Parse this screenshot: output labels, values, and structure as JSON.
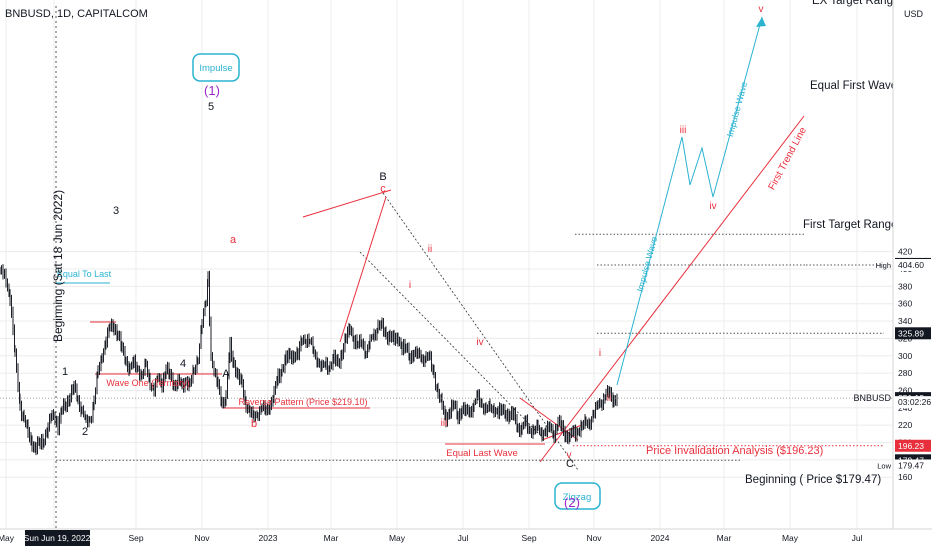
{
  "header": {
    "symbol_line": "BNBUSD, 1D, CAPITALCOM",
    "currency": "USD"
  },
  "colors": {
    "red": "#e8303d",
    "cyan": "#2bb3d0",
    "purple": "#9b27c9",
    "black": "#131722",
    "grid": "#ececec"
  },
  "chart_data": {
    "type": "candlestick",
    "title": "BNBUSD, 1D, CAPITALCOM",
    "ylim": [
      150,
      440
    ],
    "y_ticks": [
      160,
      180,
      200,
      220,
      240,
      260,
      280,
      300,
      320,
      340,
      360,
      380,
      400,
      420
    ],
    "x_ticks": [
      "May",
      "Sun Jun 19, 2022",
      "Sep",
      "Nov",
      "2023",
      "Mar",
      "May",
      "Jul",
      "Sep",
      "Nov",
      "2024",
      "Mar",
      "May",
      "Jul"
    ],
    "price_path": [
      [
        0,
        400
      ],
      [
        6,
        385
      ],
      [
        10,
        370
      ],
      [
        15,
        300
      ],
      [
        20,
        245
      ],
      [
        24,
        225
      ],
      [
        28,
        210
      ],
      [
        32,
        200
      ],
      [
        36,
        193
      ],
      [
        40,
        198
      ],
      [
        44,
        205
      ],
      [
        48,
        218
      ],
      [
        52,
        230
      ],
      [
        55,
        230
      ],
      [
        58,
        220
      ],
      [
        62,
        235
      ],
      [
        66,
        245
      ],
      [
        70,
        255
      ],
      [
        74,
        262
      ],
      [
        78,
        250
      ],
      [
        82,
        238
      ],
      [
        86,
        222
      ],
      [
        90,
        226
      ],
      [
        94,
        250
      ],
      [
        98,
        280
      ],
      [
        102,
        300
      ],
      [
        106,
        320
      ],
      [
        110,
        330
      ],
      [
        114,
        335
      ],
      [
        118,
        325
      ],
      [
        122,
        305
      ],
      [
        126,
        295
      ],
      [
        130,
        285
      ],
      [
        134,
        290
      ],
      [
        138,
        285
      ],
      [
        142,
        278
      ],
      [
        146,
        288
      ],
      [
        150,
        270
      ],
      [
        154,
        262
      ],
      [
        158,
        272
      ],
      [
        162,
        270
      ],
      [
        166,
        285
      ],
      [
        170,
        275
      ],
      [
        174,
        268
      ],
      [
        178,
        270
      ],
      [
        182,
        262
      ],
      [
        186,
        272
      ],
      [
        190,
        268
      ],
      [
        194,
        280
      ],
      [
        198,
        300
      ],
      [
        202,
        340
      ],
      [
        206,
        360
      ],
      [
        208,
        390
      ],
      [
        211,
        300
      ],
      [
        214,
        280
      ],
      [
        218,
        265
      ],
      [
        222,
        248
      ],
      [
        226,
        250
      ],
      [
        230,
        310
      ],
      [
        234,
        290
      ],
      [
        238,
        275
      ],
      [
        242,
        265
      ],
      [
        246,
        245
      ],
      [
        250,
        235
      ],
      [
        254,
        228
      ],
      [
        258,
        238
      ],
      [
        262,
        240
      ],
      [
        266,
        236
      ],
      [
        270,
        246
      ],
      [
        274,
        254
      ],
      [
        278,
        275
      ],
      [
        282,
        285
      ],
      [
        286,
        295
      ],
      [
        290,
        298
      ],
      [
        294,
        302
      ],
      [
        298,
        300
      ],
      [
        302,
        318
      ],
      [
        306,
        322
      ],
      [
        310,
        315
      ],
      [
        314,
        305
      ],
      [
        318,
        296
      ],
      [
        322,
        285
      ],
      [
        326,
        290
      ],
      [
        330,
        288
      ],
      [
        334,
        295
      ],
      [
        338,
        290
      ],
      [
        342,
        305
      ],
      [
        346,
        318
      ],
      [
        350,
        332
      ],
      [
        354,
        320
      ],
      [
        358,
        310
      ],
      [
        362,
        318
      ],
      [
        366,
        305
      ],
      [
        370,
        315
      ],
      [
        374,
        325
      ],
      [
        378,
        336
      ],
      [
        382,
        332
      ],
      [
        386,
        322
      ],
      [
        390,
        325
      ],
      [
        394,
        315
      ],
      [
        398,
        320
      ],
      [
        402,
        312
      ],
      [
        406,
        305
      ],
      [
        410,
        300
      ],
      [
        414,
        305
      ],
      [
        418,
        300
      ],
      [
        422,
        298
      ],
      [
        426,
        300
      ],
      [
        430,
        295
      ],
      [
        434,
        278
      ],
      [
        438,
        258
      ],
      [
        442,
        240
      ],
      [
        446,
        228
      ],
      [
        450,
        238
      ],
      [
        454,
        240
      ],
      [
        458,
        232
      ],
      [
        462,
        238
      ],
      [
        466,
        234
      ],
      [
        470,
        238
      ],
      [
        474,
        244
      ],
      [
        478,
        252
      ],
      [
        482,
        244
      ],
      [
        486,
        240
      ],
      [
        490,
        238
      ],
      [
        494,
        240
      ],
      [
        498,
        236
      ],
      [
        502,
        234
      ],
      [
        506,
        236
      ],
      [
        510,
        230
      ],
      [
        514,
        230
      ],
      [
        518,
        218
      ],
      [
        522,
        215
      ],
      [
        526,
        222
      ],
      [
        530,
        215
      ],
      [
        534,
        214
      ],
      [
        538,
        216
      ],
      [
        542,
        213
      ],
      [
        546,
        214
      ],
      [
        550,
        216
      ],
      [
        554,
        212
      ],
      [
        558,
        222
      ],
      [
        562,
        216
      ],
      [
        566,
        209
      ],
      [
        570,
        206
      ],
      [
        574,
        210
      ],
      [
        578,
        214
      ],
      [
        582,
        218
      ],
      [
        586,
        222
      ],
      [
        590,
        226
      ],
      [
        594,
        234
      ],
      [
        598,
        244
      ],
      [
        602,
        250
      ],
      [
        606,
        254
      ],
      [
        610,
        256
      ],
      [
        614,
        250
      ],
      [
        618,
        251
      ]
    ],
    "current_price": 251.13,
    "price_tags": [
      {
        "value": "405.84",
        "price": 405.84,
        "kind": "dark"
      },
      {
        "value": "404.60",
        "price": 404.6,
        "kind": "plain",
        "note": "High"
      },
      {
        "value": "325.89",
        "price": 325.89,
        "kind": "dark"
      },
      {
        "value": "251.13",
        "price": 251.13,
        "kind": "dark",
        "note": "BNBUSD"
      },
      {
        "value": "03:02:26",
        "price": 246.5,
        "kind": "plain"
      },
      {
        "value": "196.23",
        "price": 196.23,
        "kind": "red"
      },
      {
        "value": "179.47",
        "price": 179.47,
        "kind": "dark"
      },
      {
        "value": "179.47",
        "price": 173.5,
        "kind": "plain",
        "note": "Low"
      }
    ],
    "levels": [
      {
        "label": "EX Target Range",
        "price": 440
      },
      {
        "label": "Equal First Wave",
        "price": 404.6
      },
      {
        "label": "First Target Range",
        "price": 325.89
      },
      {
        "label": "Price Invalidation Analysis ($196.23)",
        "price": 196.23
      },
      {
        "label": "Beginning ( Price $179.47)",
        "price": 179.47
      }
    ],
    "annotations": {
      "impulse_box": "Impulse",
      "zigzag_box": "Zigzag",
      "wave_1_main": "(1)",
      "wave_2_main": "(2)",
      "wave_1": "1",
      "wave_2": "2",
      "wave_3": "3",
      "wave_4": "4",
      "wave_5": "5",
      "wave_A": "A",
      "wave_B": "B",
      "wave_C": "C",
      "wave_a": "a",
      "wave_b": "b",
      "wave_c": "c",
      "sub_i": "i",
      "sub_ii": "ii",
      "sub_iii": "iii",
      "sub_iv": "iv",
      "sub_v": "v",
      "proj_i": "i",
      "proj_ii": "ii",
      "proj_iii": "iii",
      "proj_iv": "iv",
      "proj_v": "v",
      "equal_to_last": "Equal To Last",
      "wave_one_territory": "Wave One (Territory)",
      "reverse_pattern": "Reverse Pattern (Price $219.10)",
      "equal_last_wave": "Equal Last Wave",
      "beginning_vertical": "Beginning (Sat 18 Jun 2022)",
      "impulse_wave_1": "Impulse Wave",
      "impulse_wave_2": "Impulse Wave",
      "first_trend_line": "First Trend Line"
    }
  }
}
